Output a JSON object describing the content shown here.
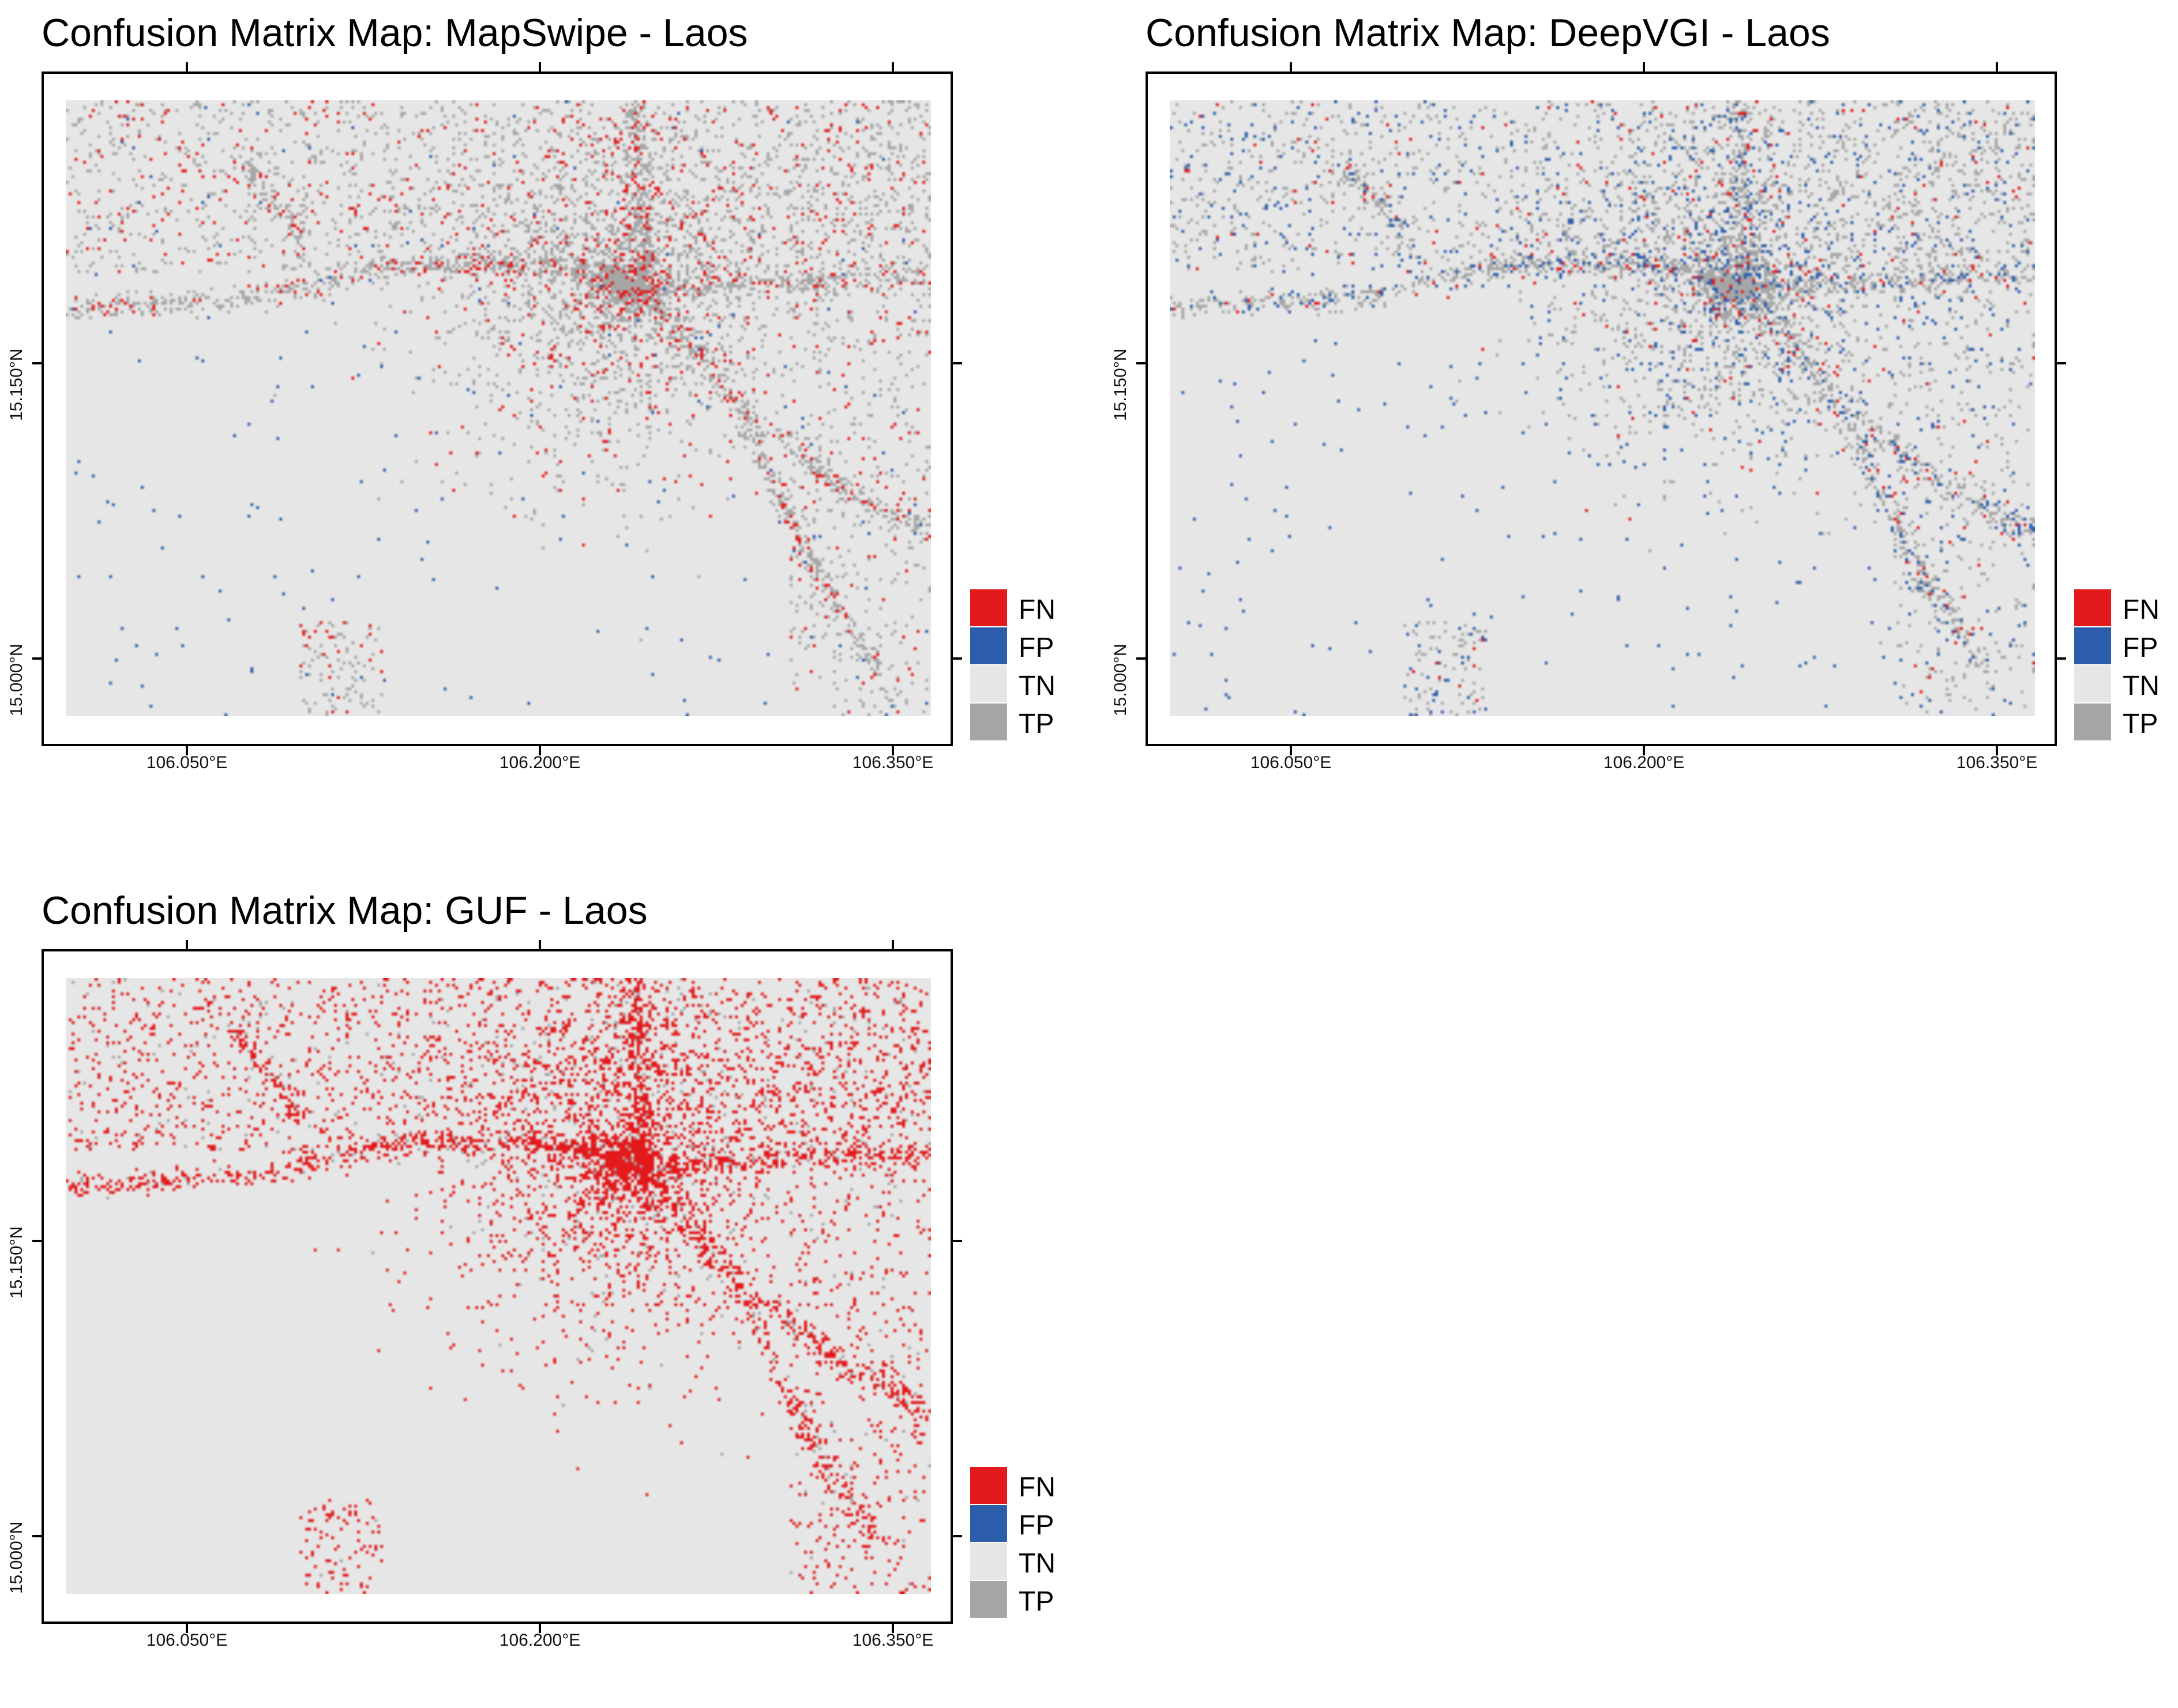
{
  "maps": [
    {
      "id": "mapswipe",
      "title": "Confusion Matrix Map: MapSwipe - Laos",
      "x_ticks": [
        "106.050°E",
        "106.200°E",
        "106.350°E"
      ],
      "y_ticks": [
        "15.000°N",
        "15.150°N"
      ],
      "legend": [
        "FN",
        "FP",
        "TN",
        "TP"
      ]
    },
    {
      "id": "deepvgi",
      "title": "Confusion Matrix Map: DeepVGI - Laos",
      "x_ticks": [
        "106.050°E",
        "106.200°E",
        "106.350°E"
      ],
      "y_ticks": [
        "15.000°N",
        "15.150°N"
      ],
      "legend": [
        "FN",
        "FP",
        "TN",
        "TP"
      ]
    },
    {
      "id": "guf",
      "title": "Confusion Matrix Map: GUF - Laos",
      "x_ticks": [
        "106.050°E",
        "106.200°E",
        "106.350°E"
      ],
      "y_ticks": [
        "15.000°N",
        "15.150°N"
      ],
      "legend": [
        "FN",
        "FP",
        "TN",
        "TP"
      ]
    }
  ],
  "class_colors": {
    "FN": "#e31a1c",
    "FP": "#2b5dab",
    "TN": "#e6e6e6",
    "TP": "#a6a6a6"
  }
}
